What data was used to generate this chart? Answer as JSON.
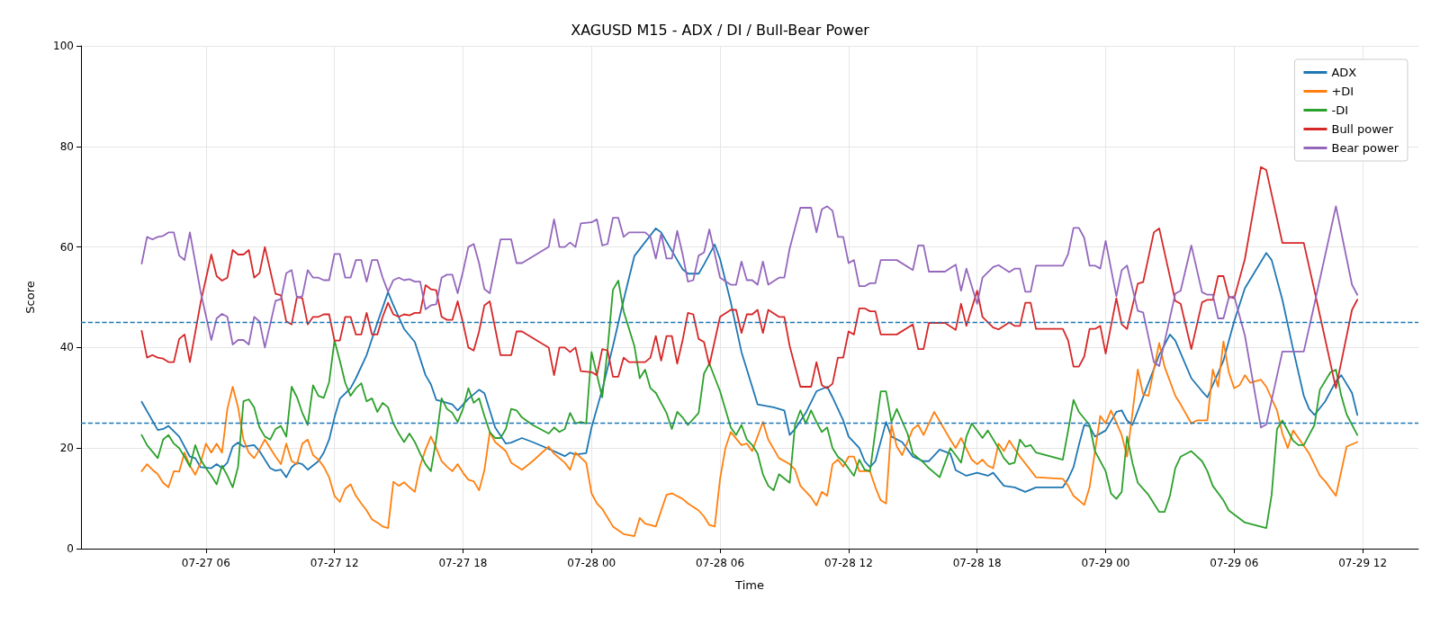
{
  "chart_data": {
    "type": "line",
    "title": "XAGUSD M15 - ADX / DI / Bull-Bear Power",
    "xlabel": "Time",
    "ylabel": "Score",
    "xlim": [
      "--07-27T00:10",
      "--07-29T14:36"
    ],
    "xticks": [
      {
        "value": "--07-27T06:00",
        "label": "07-27 06"
      },
      {
        "value": "--07-27T12:00",
        "label": "07-27 12"
      },
      {
        "value": "--07-27T18:00",
        "label": "07-27 18"
      },
      {
        "value": "--07-28T00:00",
        "label": "07-28 00"
      },
      {
        "value": "--07-28T06:00",
        "label": "07-28 06"
      },
      {
        "value": "--07-28T12:00",
        "label": "07-28 12"
      },
      {
        "value": "--07-28T18:00",
        "label": "07-28 18"
      },
      {
        "value": "--07-29T00:00",
        "label": "07-29 00"
      },
      {
        "value": "--07-29T06:00",
        "label": "07-29 06"
      },
      {
        "value": "--07-29T12:00",
        "label": "07-29 12"
      }
    ],
    "ylim": [
      0,
      100
    ],
    "yticks": [
      0,
      20,
      40,
      60,
      80,
      100
    ],
    "grid": true,
    "legend": "top right",
    "marker": "none",
    "line_style": "solid",
    "ref_lines": [
      {
        "axis": "y",
        "value": 45,
        "label": null,
        "color": "#1f77b4",
        "line_style": "dashed"
      },
      {
        "axis": "y",
        "value": 25,
        "label": null,
        "color": "#1f77b4",
        "line_style": "dashed"
      }
    ],
    "series": [
      {
        "name": "ADX",
        "color": "#1f77b4",
        "x": [
          "--07-27T03:00",
          "--07-27T03:45",
          "--07-27T04:00",
          "--07-27T04:15",
          "--07-27T04:45",
          "--07-27T05:15",
          "--07-27T05:30",
          "--07-27T05:45",
          "--07-27T06:15",
          "--07-27T06:30",
          "--07-27T06:45",
          "--07-27T07:00",
          "--07-27T07:15",
          "--07-27T07:30",
          "--07-27T07:45",
          "--07-27T08:15",
          "--07-27T08:30",
          "--07-27T09:00",
          "--07-27T09:15",
          "--07-27T09:30",
          "--07-27T09:45",
          "--07-27T10:00",
          "--07-27T10:15",
          "--07-27T10:30",
          "--07-27T10:45",
          "--07-27T11:15",
          "--07-27T11:30",
          "--07-27T11:45",
          "--07-27T12:00",
          "--07-27T12:15",
          "--07-27T12:45",
          "--07-27T13:00",
          "--07-27T13:30",
          "--07-27T14:00",
          "--07-27T14:30",
          "--07-27T14:45",
          "--07-27T15:15",
          "--07-27T15:45",
          "--07-27T16:15",
          "--07-27T16:30",
          "--07-27T16:45",
          "--07-27T17:00",
          "--07-27T17:30",
          "--07-27T17:45",
          "--07-27T18:15",
          "--07-27T18:45",
          "--07-27T19:00",
          "--07-27T19:30",
          "--07-27T20:00",
          "--07-27T20:15",
          "--07-27T20:45",
          "--07-27T21:15",
          "--07-27T21:45",
          "--07-27T22:30",
          "--07-27T22:45",
          "--07-27T23:00",
          "--07-27T23:15",
          "--07-27T23:45",
          "--07-28T00:00",
          "--07-28T00:30",
          "--07-28T01:00",
          "--07-28T01:30",
          "--07-28T02:00",
          "--07-28T03:00",
          "--07-28T03:15",
          "--07-28T04:00",
          "--07-28T04:15",
          "--07-28T04:30",
          "--07-28T05:00",
          "--07-28T05:15",
          "--07-28T05:45",
          "--07-28T06:00",
          "--07-28T06:30",
          "--07-28T07:00",
          "--07-28T07:30",
          "--07-28T07:45",
          "--07-28T08:30",
          "--07-28T09:00",
          "--07-28T09:15",
          "--07-28T09:30",
          "--07-28T10:00",
          "--07-28T10:30",
          "--07-28T11:00",
          "--07-28T11:15",
          "--07-28T11:45",
          "--07-28T12:00",
          "--07-28T12:30",
          "--07-28T12:45",
          "--07-28T13:00",
          "--07-28T13:15",
          "--07-28T13:45",
          "--07-28T14:00",
          "--07-28T14:30",
          "--07-28T15:00",
          "--07-28T15:30",
          "--07-28T15:45",
          "--07-28T16:15",
          "--07-28T16:45",
          "--07-28T17:00",
          "--07-28T17:30",
          "--07-28T18:00",
          "--07-28T18:30",
          "--07-28T18:45",
          "--07-28T19:15",
          "--07-28T19:45",
          "--07-28T20:15",
          "--07-28T20:45",
          "--07-28T22:00",
          "--07-28T22:15",
          "--07-28T22:30",
          "--07-28T22:45",
          "--07-28T23:00",
          "--07-28T23:15",
          "--07-28T23:30",
          "--07-29T00:00",
          "--07-29T00:30",
          "--07-29T00:45",
          "--07-29T01:00",
          "--07-29T01:15",
          "--07-29T02:30",
          "--07-29T03:00",
          "--07-29T03:15",
          "--07-29T04:00",
          "--07-29T04:30",
          "--07-29T04:45",
          "--07-29T05:30",
          "--07-29T06:00",
          "--07-29T06:30",
          "--07-29T07:30",
          "--07-29T07:45",
          "--07-29T08:15",
          "--07-29T08:45",
          "--07-29T09:15",
          "--07-29T09:30",
          "--07-29T09:45",
          "--07-29T10:15",
          "--07-29T10:45",
          "--07-29T11:00",
          "--07-29T11:30",
          "--07-29T11:45"
        ],
        "values": [
          29.2,
          23.6,
          23.8,
          24.4,
          22.3,
          18.3,
          18,
          16.2,
          16,
          16.8,
          16,
          17.1,
          20.3,
          21.1,
          20.3,
          20.6,
          19.4,
          16,
          15.5,
          15.7,
          14.2,
          16.2,
          17.1,
          16.8,
          15.7,
          17.4,
          19.1,
          21.7,
          26.1,
          29.8,
          31.9,
          33.9,
          38.5,
          44.9,
          51,
          48.4,
          43.7,
          41.1,
          34.5,
          32.7,
          29.6,
          29.3,
          28.7,
          27.5,
          29.8,
          31.6,
          30.9,
          24.1,
          20.9,
          21.1,
          22,
          21.2,
          20.3,
          18.9,
          18.4,
          19.1,
          18.7,
          19,
          24.1,
          31.6,
          40.3,
          49.5,
          58.2,
          63.7,
          62.9,
          57.4,
          55.6,
          54.7,
          54.7,
          56.5,
          60.5,
          57.6,
          49,
          39.1,
          32.2,
          28.7,
          28.1,
          27.5,
          22.6,
          23.8,
          27,
          31.3,
          32.2,
          30.1,
          25.5,
          22.3,
          20,
          17.4,
          16.2,
          17.4,
          25.2,
          22.3,
          21.2,
          18.3,
          17.4,
          17.4,
          19.7,
          18.9,
          15.6,
          14.5,
          15.1,
          14.5,
          15.1,
          12.5,
          12.2,
          11.3,
          12.2,
          12.2,
          13.9,
          16.2,
          20.6,
          24.6,
          24.3,
          22.3,
          23.5,
          27.2,
          27.5,
          25.5,
          24.6,
          38.5,
          42.6,
          41.4,
          33.9,
          31.3,
          30.1,
          37.4,
          45.2,
          51.8,
          58.8,
          57.4,
          49.5,
          39.7,
          30.4,
          27.8,
          26.6,
          29.3,
          33.3,
          34.5,
          31,
          26.6
        ]
      },
      {
        "name": "+DI",
        "color": "#ff7f0e",
        "x": [
          "--07-27T03:00",
          "--07-27T03:15",
          "--07-27T03:30",
          "--07-27T03:45",
          "--07-27T04:00",
          "--07-27T04:15",
          "--07-27T04:30",
          "--07-27T04:45",
          "--07-27T05:00",
          "--07-27T05:15",
          "--07-27T05:30",
          "--07-27T05:45",
          "--07-27T06:00",
          "--07-27T06:15",
          "--07-27T06:30",
          "--07-27T06:45",
          "--07-27T07:00",
          "--07-27T07:15",
          "--07-27T07:30",
          "--07-27T07:45",
          "--07-27T08:00",
          "--07-27T08:15",
          "--07-27T08:30",
          "--07-27T08:45",
          "--07-27T09:00",
          "--07-27T09:15",
          "--07-27T09:30",
          "--07-27T09:45",
          "--07-27T10:00",
          "--07-27T10:15",
          "--07-27T10:30",
          "--07-27T10:45",
          "--07-27T11:00",
          "--07-27T11:15",
          "--07-27T11:30",
          "--07-27T11:45",
          "--07-27T12:00",
          "--07-27T12:15",
          "--07-27T12:30",
          "--07-27T12:45",
          "--07-27T13:00",
          "--07-27T13:15",
          "--07-27T13:30",
          "--07-27T13:45",
          "--07-27T14:00",
          "--07-27T14:15",
          "--07-27T14:30",
          "--07-27T14:45",
          "--07-27T15:00",
          "--07-27T15:15",
          "--07-27T15:30",
          "--07-27T15:45",
          "--07-27T16:00",
          "--07-27T16:15",
          "--07-27T16:30",
          "--07-27T16:45",
          "--07-27T17:00",
          "--07-27T17:15",
          "--07-27T17:30",
          "--07-27T17:45",
          "--07-27T18:00",
          "--07-27T18:15",
          "--07-27T18:30",
          "--07-27T18:45",
          "--07-27T19:00",
          "--07-27T19:15",
          "--07-27T19:30",
          "--07-27T20:00",
          "--07-27T20:15",
          "--07-27T20:45",
          "--07-27T21:15",
          "--07-27T22:00",
          "--07-27T22:15",
          "--07-27T22:45",
          "--07-27T23:00",
          "--07-27T23:15",
          "--07-27T23:45",
          "--07-28T00:00",
          "--07-28T00:15",
          "--07-28T00:30",
          "--07-28T01:00",
          "--07-28T01:30",
          "--07-28T02:00",
          "--07-28T02:15",
          "--07-28T02:30",
          "--07-28T03:00",
          "--07-28T03:30",
          "--07-28T03:45",
          "--07-28T04:15",
          "--07-28T04:30",
          "--07-28T05:00",
          "--07-28T05:15",
          "--07-28T05:30",
          "--07-28T05:45",
          "--07-28T06:00",
          "--07-28T06:15",
          "--07-28T06:30",
          "--07-28T07:00",
          "--07-28T07:15",
          "--07-28T07:30",
          "--07-28T07:45",
          "--07-28T08:00",
          "--07-28T08:15",
          "--07-28T08:45",
          "--07-28T09:15",
          "--07-28T09:30",
          "--07-28T09:45",
          "--07-28T10:15",
          "--07-28T10:30",
          "--07-28T10:45",
          "--07-28T11:00",
          "--07-28T11:15",
          "--07-28T11:30",
          "--07-28T11:45",
          "--07-28T12:00",
          "--07-28T12:15",
          "--07-28T12:30",
          "--07-28T13:00",
          "--07-28T13:15",
          "--07-28T13:30",
          "--07-28T13:45",
          "--07-28T14:00",
          "--07-28T14:15",
          "--07-28T14:30",
          "--07-28T15:00",
          "--07-28T15:15",
          "--07-28T15:30",
          "--07-28T16:00",
          "--07-28T16:45",
          "--07-28T17:00",
          "--07-28T17:15",
          "--07-28T17:45",
          "--07-28T18:00",
          "--07-28T18:15",
          "--07-28T18:30",
          "--07-28T18:45",
          "--07-28T19:00",
          "--07-28T19:15",
          "--07-28T19:30",
          "--07-28T20:00",
          "--07-28T20:45",
          "--07-28T22:00",
          "--07-28T22:15",
          "--07-28T22:30",
          "--07-28T23:00",
          "--07-28T23:15",
          "--07-28T23:45",
          "--07-29T00:00",
          "--07-29T00:15",
          "--07-29T00:45",
          "--07-29T01:00",
          "--07-29T01:30",
          "--07-29T01:45",
          "--07-29T02:00",
          "--07-29T02:30",
          "--07-29T02:45",
          "--07-29T03:15",
          "--07-29T03:30",
          "--07-29T04:00",
          "--07-29T04:15",
          "--07-29T04:45",
          "--07-29T05:00",
          "--07-29T05:15",
          "--07-29T05:30",
          "--07-29T05:45",
          "--07-29T06:00",
          "--07-29T06:15",
          "--07-29T06:30",
          "--07-29T06:45",
          "--07-29T07:15",
          "--07-29T07:30",
          "--07-29T08:00",
          "--07-29T08:15",
          "--07-29T08:30",
          "--07-29T08:45",
          "--07-29T09:00",
          "--07-29T09:30",
          "--07-29T10:00",
          "--07-29T10:15",
          "--07-29T10:45",
          "--07-29T11:15",
          "--07-29T11:45"
        ],
        "values": [
          15.4,
          16.8,
          15.7,
          14.8,
          13.1,
          12.2,
          15.4,
          15.3,
          19.1,
          16.5,
          14.7,
          17.1,
          20.9,
          19.1,
          20.9,
          19.1,
          27.8,
          32.2,
          28.1,
          21.7,
          19.1,
          18,
          19.7,
          21.7,
          20,
          18.3,
          16.8,
          20.9,
          17.4,
          16.8,
          20.9,
          21.7,
          18.6,
          17.7,
          16.3,
          14.2,
          10.5,
          9.3,
          11.9,
          12.8,
          10.5,
          9,
          7.6,
          5.8,
          5.2,
          4.4,
          4.1,
          13.3,
          12.5,
          13.2,
          12.2,
          11.3,
          16.5,
          19.7,
          22.3,
          20,
          17.4,
          16.3,
          15.4,
          16.8,
          15.1,
          13.7,
          13.4,
          11.6,
          15.6,
          23.2,
          21.2,
          19.4,
          17.1,
          15.7,
          17.4,
          20.3,
          18.9,
          17.1,
          15.7,
          19.1,
          17.1,
          11,
          9,
          7.9,
          4.4,
          2.9,
          2.5,
          6.1,
          5,
          4.4,
          10.7,
          11,
          9.9,
          9,
          7.6,
          6.4,
          4.7,
          4.4,
          13.9,
          20,
          23.2,
          20.6,
          20.9,
          19.4,
          22.3,
          25.2,
          21.7,
          18,
          16.8,
          15.7,
          12.5,
          10.2,
          8.6,
          11.3,
          10.5,
          16.8,
          17.7,
          16.3,
          18.3,
          18.3,
          15.4,
          15.4,
          12.2,
          9.6,
          9,
          24.6,
          20.3,
          18.6,
          23.8,
          24.6,
          22.6,
          27.2,
          21.7,
          20,
          22,
          17.7,
          16.8,
          17.7,
          16.5,
          16,
          20.9,
          19.4,
          21.5,
          18.3,
          14.2,
          13.9,
          12.5,
          10.5,
          8.7,
          12.2,
          26.4,
          24.9,
          27.5,
          22.6,
          18.3,
          35.6,
          30.7,
          30.4,
          40.9,
          36.2,
          30.4,
          28.7,
          24.9,
          25.5,
          25.5,
          35.6,
          32.2,
          41.2,
          35.1,
          31.9,
          32.5,
          34.5,
          33,
          33.6,
          32.2,
          27.5,
          22.9,
          20,
          23.5,
          22,
          18.9,
          14.5,
          13.4,
          10.5,
          20.3,
          21.2
        ]
      },
      {
        "name": "-DI",
        "color": "#2ca02c",
        "x": [
          "--07-27T03:00",
          "--07-27T03:15",
          "--07-27T03:45",
          "--07-27T04:00",
          "--07-27T04:15",
          "--07-27T04:30",
          "--07-27T04:45",
          "--07-27T05:00",
          "--07-27T05:15",
          "--07-27T05:30",
          "--07-27T05:45",
          "--07-27T06:00",
          "--07-27T06:15",
          "--07-27T06:30",
          "--07-27T06:45",
          "--07-27T07:00",
          "--07-27T07:15",
          "--07-27T07:30",
          "--07-27T07:45",
          "--07-27T08:00",
          "--07-27T08:15",
          "--07-27T08:30",
          "--07-27T08:45",
          "--07-27T09:00",
          "--07-27T09:15",
          "--07-27T09:30",
          "--07-27T09:45",
          "--07-27T10:00",
          "--07-27T10:15",
          "--07-27T10:30",
          "--07-27T10:45",
          "--07-27T11:00",
          "--07-27T11:15",
          "--07-27T11:30",
          "--07-27T11:45",
          "--07-27T12:00",
          "--07-27T12:15",
          "--07-27T12:30",
          "--07-27T12:45",
          "--07-27T13:00",
          "--07-27T13:15",
          "--07-27T13:30",
          "--07-27T13:45",
          "--07-27T14:00",
          "--07-27T14:15",
          "--07-27T14:30",
          "--07-27T14:45",
          "--07-27T15:00",
          "--07-27T15:15",
          "--07-27T15:30",
          "--07-27T15:45",
          "--07-27T16:00",
          "--07-27T16:15",
          "--07-27T16:30",
          "--07-27T16:45",
          "--07-27T17:00",
          "--07-27T17:15",
          "--07-27T17:30",
          "--07-27T17:45",
          "--07-27T18:00",
          "--07-27T18:15",
          "--07-27T18:30",
          "--07-27T18:45",
          "--07-27T19:00",
          "--07-27T19:15",
          "--07-27T19:30",
          "--07-27T19:45",
          "--07-27T20:00",
          "--07-27T20:15",
          "--07-27T20:30",
          "--07-27T20:45",
          "--07-27T21:15",
          "--07-27T22:00",
          "--07-27T22:15",
          "--07-27T22:30",
          "--07-27T22:45",
          "--07-27T23:00",
          "--07-27T23:15",
          "--07-27T23:30",
          "--07-27T23:45",
          "--07-28T00:00",
          "--07-28T00:30",
          "--07-28T00:45",
          "--07-28T01:00",
          "--07-28T01:15",
          "--07-28T01:30",
          "--07-28T02:00",
          "--07-28T02:15",
          "--07-28T02:30",
          "--07-28T02:45",
          "--07-28T03:00",
          "--07-28T03:30",
          "--07-28T03:45",
          "--07-28T04:00",
          "--07-28T04:15",
          "--07-28T04:30",
          "--07-28T05:00",
          "--07-28T05:15",
          "--07-28T05:30",
          "--07-28T06:00",
          "--07-28T06:30",
          "--07-28T06:45",
          "--07-28T07:00",
          "--07-28T07:15",
          "--07-28T07:30",
          "--07-28T07:45",
          "--07-28T08:00",
          "--07-28T08:15",
          "--07-28T08:30",
          "--07-28T08:45",
          "--07-28T09:15",
          "--07-28T09:30",
          "--07-28T09:45",
          "--07-28T10:00",
          "--07-28T10:15",
          "--07-28T10:30",
          "--07-28T10:45",
          "--07-28T11:00",
          "--07-28T11:15",
          "--07-28T11:30",
          "--07-28T11:45",
          "--07-28T12:15",
          "--07-28T12:30",
          "--07-28T12:45",
          "--07-28T13:00",
          "--07-28T13:30",
          "--07-28T13:45",
          "--07-28T14:00",
          "--07-28T14:15",
          "--07-28T14:45",
          "--07-28T15:00",
          "--07-28T15:30",
          "--07-28T15:45",
          "--07-28T16:15",
          "--07-28T16:45",
          "--07-28T17:00",
          "--07-28T17:15",
          "--07-28T17:30",
          "--07-28T17:45",
          "--07-28T18:15",
          "--07-28T18:30",
          "--07-28T19:00",
          "--07-28T19:15",
          "--07-28T19:30",
          "--07-28T19:45",
          "--07-28T20:00",
          "--07-28T20:15",
          "--07-28T20:30",
          "--07-28T20:45",
          "--07-28T22:00",
          "--07-28T22:15",
          "--07-28T22:30",
          "--07-28T22:45",
          "--07-28T23:15",
          "--07-28T23:30",
          "--07-29T00:00",
          "--07-29T00:15",
          "--07-29T00:30",
          "--07-29T00:45",
          "--07-29T01:00",
          "--07-29T01:15",
          "--07-29T01:30",
          "--07-29T02:00",
          "--07-29T02:30",
          "--07-29T02:45",
          "--07-29T03:00",
          "--07-29T03:15",
          "--07-29T03:30",
          "--07-29T04:00",
          "--07-29T04:30",
          "--07-29T04:45",
          "--07-29T05:00",
          "--07-29T05:30",
          "--07-29T05:45",
          "--07-29T06:30",
          "--07-29T07:30",
          "--07-29T07:45",
          "--07-29T08:00",
          "--07-29T08:15",
          "--07-29T08:45",
          "--07-29T09:00",
          "--07-29T09:15",
          "--07-29T09:30",
          "--07-29T09:45",
          "--07-29T10:00",
          "--07-29T10:30",
          "--07-29T10:45",
          "--07-29T11:00",
          "--07-29T11:15",
          "--07-29T11:45"
        ],
        "values": [
          22.6,
          20.6,
          18,
          21.7,
          22.6,
          20.9,
          20,
          18.3,
          16.3,
          20.6,
          17.7,
          16,
          14.5,
          12.8,
          16.5,
          14.5,
          12.2,
          16.3,
          29.3,
          29.7,
          28.1,
          24.1,
          22.3,
          21.7,
          23.8,
          24.4,
          22.3,
          32.2,
          30.1,
          27,
          24.6,
          32.5,
          30.4,
          30,
          33.1,
          41.4,
          37.4,
          33,
          30.4,
          31.9,
          32.9,
          29.3,
          29.9,
          27.2,
          29,
          28.1,
          24.9,
          22.9,
          21.2,
          22.9,
          21.2,
          18.9,
          16.8,
          15.4,
          21.7,
          29.9,
          27.8,
          27,
          25.2,
          27.8,
          31.9,
          29,
          29.9,
          26.4,
          23.2,
          22,
          22,
          23.8,
          27.8,
          27.5,
          26.1,
          24.6,
          22.9,
          24.1,
          23.2,
          23.8,
          27,
          24.9,
          25.2,
          24.9,
          39.1,
          30.1,
          39.7,
          51.5,
          53.3,
          47.2,
          40.3,
          33.9,
          35.6,
          31.9,
          31,
          27,
          23.8,
          27.2,
          26.1,
          24.6,
          27,
          34.8,
          36.8,
          31.3,
          24.1,
          22.6,
          24.6,
          21.7,
          20.6,
          18.9,
          14.8,
          12.5,
          11.6,
          14.8,
          13.1,
          24.6,
          27.5,
          24.9,
          27.5,
          25.2,
          23.2,
          24.1,
          20,
          18.3,
          17.4,
          14.5,
          17.7,
          15.7,
          15.4,
          31.3,
          31.3,
          25.2,
          27.8,
          22.9,
          18.9,
          17.1,
          16,
          14.2,
          20,
          18.6,
          17.1,
          22.3,
          24.9,
          22,
          23.5,
          20,
          18,
          16.8,
          17.1,
          21.7,
          20.3,
          20.6,
          19.1,
          17.7,
          23.5,
          29.6,
          27.2,
          24.6,
          19.4,
          15.4,
          11,
          9.9,
          11.3,
          22.3,
          17.1,
          13.1,
          10.7,
          7.3,
          7.3,
          10.5,
          16,
          18.3,
          19.4,
          17.4,
          15.4,
          12.5,
          9.6,
          7.6,
          5.2,
          4.1,
          10.7,
          23.8,
          25.5,
          21.5,
          20.6,
          20.6,
          22.6,
          24.6,
          31.6,
          35.1,
          35.6,
          30.4,
          26.7,
          22.6
        ]
      },
      {
        "name": "Bull power",
        "color": "#d62728",
        "x": [
          "--07-27T03:00",
          "--07-27T03:15",
          "--07-27T03:30",
          "--07-27T03:45",
          "--07-27T04:00",
          "--07-27T04:15",
          "--07-27T04:30",
          "--07-27T04:45",
          "--07-27T05:00",
          "--07-27T05:15",
          "--07-27T05:45",
          "--07-27T06:15",
          "--07-27T06:30",
          "--07-27T06:45",
          "--07-27T07:00",
          "--07-27T07:15",
          "--07-27T07:30",
          "--07-27T07:45",
          "--07-27T08:00",
          "--07-27T08:15",
          "--07-27T08:30",
          "--07-27T08:45",
          "--07-27T09:15",
          "--07-27T09:30",
          "--07-27T09:45",
          "--07-27T10:00",
          "--07-27T10:15",
          "--07-27T10:30",
          "--07-27T10:45",
          "--07-27T11:00",
          "--07-27T11:15",
          "--07-27T11:30",
          "--07-27T11:45",
          "--07-27T12:00",
          "--07-27T12:15",
          "--07-27T12:30",
          "--07-27T12:45",
          "--07-27T13:00",
          "--07-27T13:15",
          "--07-27T13:30",
          "--07-27T13:45",
          "--07-27T14:00",
          "--07-27T14:15",
          "--07-27T14:30",
          "--07-27T14:45",
          "--07-27T15:00",
          "--07-27T15:15",
          "--07-27T15:30",
          "--07-27T15:45",
          "--07-27T16:00",
          "--07-27T16:15",
          "--07-27T16:30",
          "--07-27T16:45",
          "--07-27T17:00",
          "--07-27T17:15",
          "--07-27T17:30",
          "--07-27T17:45",
          "--07-27T18:00",
          "--07-27T18:15",
          "--07-27T18:30",
          "--07-27T18:45",
          "--07-27T19:00",
          "--07-27T19:15",
          "--07-27T19:45",
          "--07-27T20:15",
          "--07-27T20:30",
          "--07-27T20:45",
          "--07-27T22:00",
          "--07-27T22:15",
          "--07-27T22:30",
          "--07-27T22:45",
          "--07-27T23:00",
          "--07-27T23:15",
          "--07-27T23:30",
          "--07-28T00:00",
          "--07-28T00:15",
          "--07-28T00:30",
          "--07-28T00:45",
          "--07-28T01:00",
          "--07-28T01:15",
          "--07-28T01:30",
          "--07-28T01:45",
          "--07-28T02:30",
          "--07-28T02:45",
          "--07-28T03:00",
          "--07-28T03:15",
          "--07-28T03:30",
          "--07-28T03:45",
          "--07-28T04:00",
          "--07-28T04:15",
          "--07-28T04:30",
          "--07-28T04:45",
          "--07-28T05:00",
          "--07-28T05:15",
          "--07-28T05:30",
          "--07-28T06:00",
          "--07-28T06:30",
          "--07-28T06:45",
          "--07-28T07:00",
          "--07-28T07:15",
          "--07-28T07:30",
          "--07-28T07:45",
          "--07-28T08:00",
          "--07-28T08:15",
          "--07-28T08:45",
          "--07-28T09:00",
          "--07-28T09:15",
          "--07-28T09:45",
          "--07-28T10:15",
          "--07-28T10:30",
          "--07-28T10:45",
          "--07-28T11:00",
          "--07-28T11:15",
          "--07-28T11:30",
          "--07-28T11:45",
          "--07-28T12:00",
          "--07-28T12:15",
          "--07-28T12:30",
          "--07-28T12:45",
          "--07-28T13:00",
          "--07-28T13:15",
          "--07-28T13:30",
          "--07-28T14:15",
          "--07-28T15:00",
          "--07-28T15:15",
          "--07-28T15:30",
          "--07-28T15:45",
          "--07-28T16:30",
          "--07-28T17:00",
          "--07-28T17:15",
          "--07-28T17:30",
          "--07-28T18:00",
          "--07-28T18:15",
          "--07-28T18:45",
          "--07-28T19:00",
          "--07-28T19:30",
          "--07-28T19:45",
          "--07-28T20:00",
          "--07-28T20:15",
          "--07-28T20:30",
          "--07-28T20:45",
          "--07-28T22:00",
          "--07-28T22:15",
          "--07-28T22:30",
          "--07-28T22:45",
          "--07-28T23:00",
          "--07-28T23:15",
          "--07-28T23:30",
          "--07-28T23:45",
          "--07-29T00:00",
          "--07-29T00:30",
          "--07-29T00:45",
          "--07-29T01:00",
          "--07-29T01:30",
          "--07-29T01:45",
          "--07-29T02:15",
          "--07-29T02:30",
          "--07-29T03:15",
          "--07-29T03:30",
          "--07-29T04:00",
          "--07-29T04:30",
          "--07-29T04:45",
          "--07-29T05:00",
          "--07-29T05:15",
          "--07-29T05:30",
          "--07-29T05:45",
          "--07-29T06:00",
          "--07-29T06:30",
          "--07-29T07:15",
          "--07-29T07:30",
          "--07-29T08:15",
          "--07-29T09:15",
          "--07-29T09:45",
          "--07-29T10:45",
          "--07-29T11:30",
          "--07-29T11:45"
        ],
        "values": [
          43.3,
          38,
          38.5,
          38,
          37.8,
          37.1,
          37.1,
          41.7,
          42.6,
          37.1,
          48.9,
          58.5,
          54.2,
          53.3,
          53.9,
          59.4,
          58.5,
          58.5,
          59.4,
          53.9,
          54.8,
          60,
          50.7,
          50.4,
          45.2,
          44.6,
          50.1,
          49.8,
          44.6,
          46.1,
          46.1,
          46.6,
          46.6,
          41.4,
          41.4,
          46.1,
          46.1,
          42.6,
          42.6,
          46.9,
          42.6,
          42.6,
          46.1,
          48.9,
          46.6,
          46.1,
          46.6,
          46.4,
          46.9,
          46.9,
          52.4,
          51.6,
          51.4,
          46.1,
          45.5,
          45.5,
          49.2,
          44.9,
          40,
          39.4,
          43.2,
          48.4,
          49.2,
          38.5,
          38.5,
          43.2,
          43.2,
          40,
          34.5,
          40,
          40,
          39.1,
          40,
          35.3,
          35.1,
          34.5,
          39.7,
          39.4,
          34.2,
          34.2,
          38,
          37.1,
          37.1,
          38,
          42.3,
          37.4,
          42.3,
          42.3,
          36.8,
          41.4,
          46.9,
          46.6,
          41.7,
          41.1,
          36.5,
          46.1,
          47.5,
          47.5,
          42.9,
          46.6,
          46.6,
          47.5,
          42.9,
          47.5,
          46.1,
          46.1,
          40.3,
          32.2,
          32.2,
          37.1,
          32.5,
          31.9,
          32.8,
          38,
          38,
          43.2,
          42.6,
          47.8,
          47.8,
          47.2,
          47.2,
          42.6,
          42.6,
          44.6,
          39.7,
          39.7,
          44.9,
          44.9,
          43.5,
          48.7,
          44.3,
          51.3,
          46.1,
          44,
          43.6,
          45,
          44.3,
          44.3,
          48.9,
          48.9,
          43.7,
          43.7,
          41.4,
          36.2,
          36.2,
          38.2,
          43.7,
          43.7,
          44.3,
          38.8,
          49.8,
          44.6,
          43.7,
          52.7,
          53,
          62.9,
          63.7,
          49.3,
          48.7,
          39.7,
          49,
          49.5,
          49.5,
          54.2,
          54.2,
          50.1,
          49.8,
          57.6,
          75.9,
          75.3,
          60.8,
          60.8,
          51.3,
          31.9,
          47.5,
          49.5
        ]
      },
      {
        "name": "Bear power",
        "color": "#9467bd",
        "x": [
          "--07-27T03:00",
          "--07-27T03:15",
          "--07-27T03:30",
          "--07-27T03:45",
          "--07-27T04:00",
          "--07-27T04:15",
          "--07-27T04:30",
          "--07-27T04:45",
          "--07-27T05:00",
          "--07-27T05:15",
          "--07-27T05:45",
          "--07-27T06:15",
          "--07-27T06:30",
          "--07-27T06:45",
          "--07-27T07:00",
          "--07-27T07:15",
          "--07-27T07:30",
          "--07-27T07:45",
          "--07-27T08:00",
          "--07-27T08:15",
          "--07-27T08:30",
          "--07-27T08:45",
          "--07-27T09:15",
          "--07-27T09:30",
          "--07-27T09:45",
          "--07-27T10:00",
          "--07-27T10:15",
          "--07-27T10:30",
          "--07-27T10:45",
          "--07-27T11:00",
          "--07-27T11:15",
          "--07-27T11:30",
          "--07-27T11:45",
          "--07-27T12:00",
          "--07-27T12:15",
          "--07-27T12:30",
          "--07-27T12:45",
          "--07-27T13:00",
          "--07-27T13:15",
          "--07-27T13:30",
          "--07-27T13:45",
          "--07-27T14:00",
          "--07-27T14:15",
          "--07-27T14:30",
          "--07-27T14:45",
          "--07-27T15:00",
          "--07-27T15:15",
          "--07-27T15:30",
          "--07-27T15:45",
          "--07-27T16:00",
          "--07-27T16:15",
          "--07-27T16:30",
          "--07-27T16:45",
          "--07-27T17:00",
          "--07-27T17:15",
          "--07-27T17:30",
          "--07-27T17:45",
          "--07-27T18:00",
          "--07-27T18:15",
          "--07-27T18:30",
          "--07-27T18:45",
          "--07-27T19:00",
          "--07-27T19:15",
          "--07-27T19:45",
          "--07-27T20:15",
          "--07-27T20:30",
          "--07-27T20:45",
          "--07-27T22:00",
          "--07-27T22:15",
          "--07-27T22:30",
          "--07-27T22:45",
          "--07-27T23:00",
          "--07-27T23:15",
          "--07-27T23:30",
          "--07-28T00:00",
          "--07-28T00:15",
          "--07-28T00:30",
          "--07-28T00:45",
          "--07-28T01:00",
          "--07-28T01:15",
          "--07-28T01:30",
          "--07-28T01:45",
          "--07-28T02:30",
          "--07-28T02:45",
          "--07-28T03:00",
          "--07-28T03:15",
          "--07-28T03:30",
          "--07-28T03:45",
          "--07-28T04:00",
          "--07-28T04:15",
          "--07-28T04:30",
          "--07-28T04:45",
          "--07-28T05:00",
          "--07-28T05:15",
          "--07-28T05:30",
          "--07-28T06:00",
          "--07-28T06:30",
          "--07-28T06:45",
          "--07-28T07:00",
          "--07-28T07:15",
          "--07-28T07:30",
          "--07-28T07:45",
          "--07-28T08:00",
          "--07-28T08:15",
          "--07-28T08:45",
          "--07-28T09:00",
          "--07-28T09:15",
          "--07-28T09:45",
          "--07-28T10:15",
          "--07-28T10:30",
          "--07-28T10:45",
          "--07-28T11:00",
          "--07-28T11:15",
          "--07-28T11:30",
          "--07-28T11:45",
          "--07-28T12:00",
          "--07-28T12:15",
          "--07-28T12:30",
          "--07-28T12:45",
          "--07-28T13:00",
          "--07-28T13:15",
          "--07-28T13:30",
          "--07-28T14:15",
          "--07-28T15:00",
          "--07-28T15:15",
          "--07-28T15:30",
          "--07-28T15:45",
          "--07-28T16:30",
          "--07-28T17:00",
          "--07-28T17:15",
          "--07-28T17:30",
          "--07-28T18:00",
          "--07-28T18:15",
          "--07-28T18:45",
          "--07-28T19:00",
          "--07-28T19:30",
          "--07-28T19:45",
          "--07-28T20:00",
          "--07-28T20:15",
          "--07-28T20:30",
          "--07-28T20:45",
          "--07-28T22:00",
          "--07-28T22:15",
          "--07-28T22:30",
          "--07-28T22:45",
          "--07-28T23:00",
          "--07-28T23:15",
          "--07-28T23:30",
          "--07-28T23:45",
          "--07-29T00:00",
          "--07-29T00:30",
          "--07-29T00:45",
          "--07-29T01:00",
          "--07-29T01:30",
          "--07-29T01:45",
          "--07-29T02:15",
          "--07-29T02:30",
          "--07-29T03:15",
          "--07-29T03:30",
          "--07-29T04:00",
          "--07-29T04:30",
          "--07-29T04:45",
          "--07-29T05:00",
          "--07-29T05:15",
          "--07-29T05:30",
          "--07-29T05:45",
          "--07-29T06:00",
          "--07-29T06:30",
          "--07-29T07:15",
          "--07-29T07:30",
          "--07-29T08:15",
          "--07-29T09:15",
          "--07-29T09:45",
          "--07-29T10:45",
          "--07-29T11:30",
          "--07-29T11:45"
        ],
        "values": [
          56.7,
          62,
          61.5,
          62,
          62.2,
          62.9,
          62.9,
          58.3,
          57.4,
          62.9,
          51.1,
          41.5,
          45.8,
          46.7,
          46.1,
          40.6,
          41.5,
          41.5,
          40.6,
          46.1,
          45.2,
          40,
          49.3,
          49.6,
          54.8,
          55.4,
          49.9,
          50.2,
          55.4,
          53.9,
          53.9,
          53.4,
          53.4,
          58.6,
          58.6,
          53.9,
          53.9,
          57.4,
          57.4,
          53.1,
          57.4,
          57.4,
          53.9,
          51.1,
          53.4,
          53.9,
          53.4,
          53.6,
          53.1,
          53.1,
          47.6,
          48.4,
          48.6,
          53.9,
          54.5,
          54.5,
          50.8,
          55.1,
          60,
          60.6,
          56.8,
          51.6,
          50.8,
          61.5,
          61.5,
          56.8,
          56.8,
          60,
          65.5,
          60,
          60,
          60.9,
          60,
          64.7,
          64.9,
          65.5,
          60.3,
          60.6,
          65.8,
          65.8,
          62,
          62.9,
          62.9,
          62,
          57.7,
          62.6,
          57.7,
          57.7,
          63.2,
          58.6,
          53.1,
          53.4,
          58.3,
          58.9,
          63.5,
          53.9,
          52.5,
          52.5,
          57.1,
          53.4,
          53.4,
          52.5,
          57.1,
          52.5,
          53.9,
          53.9,
          59.7,
          67.8,
          67.8,
          62.9,
          67.5,
          68.1,
          67.2,
          62,
          62,
          56.8,
          57.4,
          52.2,
          52.2,
          52.8,
          52.8,
          57.4,
          57.4,
          55.4,
          60.3,
          60.3,
          55.1,
          55.1,
          56.5,
          51.3,
          55.7,
          48.7,
          53.9,
          56,
          56.4,
          55,
          55.7,
          55.7,
          51.1,
          51.1,
          56.3,
          56.3,
          58.6,
          63.8,
          63.8,
          61.8,
          56.3,
          56.3,
          55.7,
          61.2,
          50.2,
          55.4,
          56.3,
          47.3,
          47,
          37.1,
          36.3,
          50.7,
          51.3,
          60.3,
          51,
          50.5,
          50.5,
          45.8,
          45.8,
          49.9,
          50.2,
          42.4,
          24.1,
          24.7,
          39.2,
          39.2,
          48.7,
          68.1,
          52.5,
          50.5
        ]
      }
    ]
  }
}
